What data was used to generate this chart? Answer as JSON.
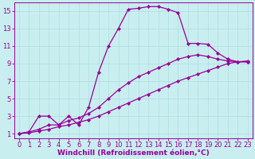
{
  "xlabel": "Windchill (Refroidissement éolien,°C)",
  "background_color": "#c8eef0",
  "grid_color": "#b0dde0",
  "line_color": "#990099",
  "xlim": [
    -0.5,
    23.5
  ],
  "ylim": [
    0.5,
    16.0
  ],
  "xticks": [
    0,
    1,
    2,
    3,
    4,
    5,
    6,
    7,
    8,
    9,
    10,
    11,
    12,
    13,
    14,
    15,
    16,
    17,
    18,
    19,
    20,
    21,
    22,
    23
  ],
  "yticks": [
    1,
    3,
    5,
    7,
    9,
    11,
    13,
    15
  ],
  "xlabel_fontsize": 6.5,
  "tick_fontsize": 6.0,
  "series": [
    {
      "x": [
        0,
        1,
        2,
        3,
        4,
        5,
        6,
        7,
        8,
        9,
        10,
        11,
        12,
        13,
        14,
        15,
        16,
        17,
        18,
        19,
        20,
        21,
        22,
        23
      ],
      "y": [
        1.0,
        1.1,
        1.3,
        1.5,
        1.8,
        2.0,
        2.3,
        2.6,
        3.0,
        3.5,
        4.0,
        4.5,
        5.0,
        5.5,
        6.0,
        6.5,
        7.0,
        7.4,
        7.8,
        8.2,
        8.6,
        9.0,
        9.2,
        9.3
      ]
    },
    {
      "x": [
        0,
        1,
        2,
        3,
        4,
        5,
        6,
        7,
        8,
        9,
        10,
        11,
        12,
        13,
        14,
        15,
        16,
        17,
        18,
        19,
        20,
        21,
        22,
        23
      ],
      "y": [
        1.0,
        1.2,
        1.5,
        2.0,
        2.0,
        2.5,
        2.8,
        3.3,
        4.0,
        5.0,
        6.0,
        6.8,
        7.5,
        8.0,
        8.5,
        9.0,
        9.5,
        9.8,
        10.0,
        9.8,
        9.5,
        9.3,
        9.2,
        9.2
      ]
    },
    {
      "x": [
        0,
        1,
        2,
        3,
        4,
        5,
        6,
        7,
        8,
        9,
        10,
        11,
        12,
        13,
        14,
        15,
        16,
        17,
        18,
        19,
        20,
        21,
        22,
        23
      ],
      "y": [
        1.0,
        1.2,
        3.0,
        3.0,
        2.0,
        3.0,
        2.0,
        4.0,
        8.0,
        11.0,
        13.0,
        15.2,
        15.3,
        15.5,
        15.5,
        15.2,
        14.8,
        11.3,
        11.3,
        11.2,
        10.2,
        9.5,
        9.2,
        9.2
      ]
    }
  ]
}
